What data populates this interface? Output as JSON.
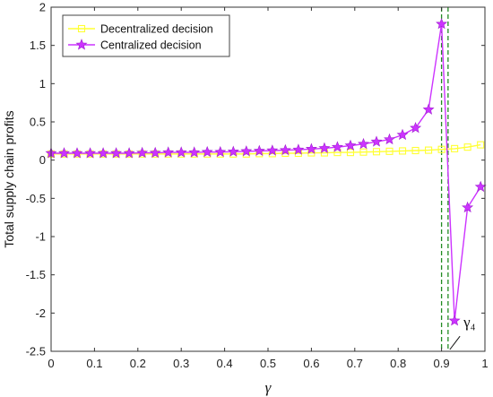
{
  "chart_data": {
    "type": "line",
    "xlabel": "γ",
    "ylabel": "Total supply chain profits",
    "xlim": [
      0,
      1
    ],
    "ylim": [
      -2.5,
      2
    ],
    "xticks": [
      0,
      0.1,
      0.2,
      0.3,
      0.4,
      0.5,
      0.6,
      0.7,
      0.8,
      0.9,
      1
    ],
    "xtick_labels": [
      "0",
      "0.1",
      "0.2",
      "0.3",
      "0.4",
      "0.5",
      "0.6",
      "0.7",
      "0.8",
      "0.9",
      "1"
    ],
    "yticks": [
      -2.5,
      -2,
      -1.5,
      -1,
      -0.5,
      0,
      0.5,
      1,
      1.5,
      2
    ],
    "ytick_labels": [
      "-2.5",
      "-2",
      "-1.5",
      "-1",
      "-0.5",
      "0",
      "0.5",
      "1",
      "1.5",
      "2"
    ],
    "grid": false,
    "legend_position": "top-left",
    "series": [
      {
        "name": "Decentralized decision",
        "color": "#ffff33",
        "marker": "square",
        "x": [
          0,
          0.03,
          0.06,
          0.09,
          0.12,
          0.15,
          0.18,
          0.21,
          0.24,
          0.27,
          0.3,
          0.33,
          0.36,
          0.39,
          0.42,
          0.45,
          0.48,
          0.51,
          0.54,
          0.57,
          0.6,
          0.63,
          0.66,
          0.69,
          0.72,
          0.75,
          0.78,
          0.81,
          0.84,
          0.87,
          0.9,
          0.93,
          0.96,
          0.99
        ],
        "y": [
          0.08,
          0.08,
          0.08,
          0.08,
          0.08,
          0.08,
          0.08,
          0.08,
          0.08,
          0.08,
          0.08,
          0.08,
          0.08,
          0.08,
          0.08,
          0.08,
          0.085,
          0.085,
          0.09,
          0.09,
          0.095,
          0.095,
          0.1,
          0.1,
          0.105,
          0.11,
          0.115,
          0.12,
          0.125,
          0.13,
          0.14,
          0.15,
          0.17,
          0.2
        ]
      },
      {
        "name": "Centralized decision",
        "color": "#cc33ff",
        "marker": "star",
        "x": [
          0,
          0.03,
          0.06,
          0.09,
          0.12,
          0.15,
          0.18,
          0.21,
          0.24,
          0.27,
          0.3,
          0.33,
          0.36,
          0.39,
          0.42,
          0.45,
          0.48,
          0.51,
          0.54,
          0.57,
          0.6,
          0.63,
          0.66,
          0.69,
          0.72,
          0.75,
          0.78,
          0.81,
          0.84,
          0.87,
          0.9,
          0.93,
          0.96,
          0.99
        ],
        "y": [
          0.09,
          0.09,
          0.09,
          0.09,
          0.09,
          0.09,
          0.09,
          0.095,
          0.095,
          0.1,
          0.1,
          0.1,
          0.105,
          0.105,
          0.11,
          0.115,
          0.12,
          0.125,
          0.13,
          0.135,
          0.145,
          0.155,
          0.17,
          0.19,
          0.21,
          0.24,
          0.27,
          0.33,
          0.42,
          0.66,
          1.78,
          -2.1,
          -0.62,
          -0.35
        ]
      }
    ],
    "vlines": [
      {
        "x": 0.9,
        "color": "#228b22",
        "style": "dashed"
      },
      {
        "x": 0.915,
        "color": "#228b22",
        "style": "dashed"
      }
    ],
    "annotations": [
      {
        "text": "γ₄",
        "x": 0.93,
        "y": -2.28
      }
    ]
  }
}
